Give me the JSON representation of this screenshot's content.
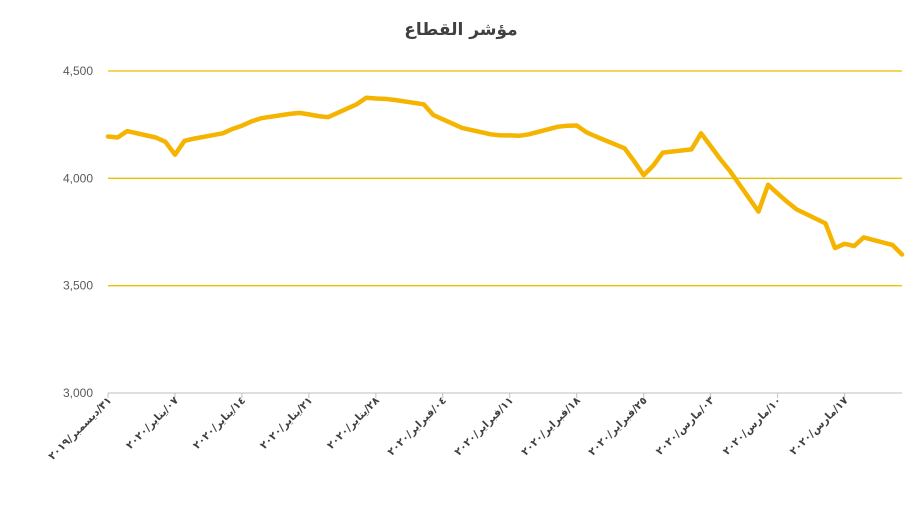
{
  "chart_data": {
    "type": "line",
    "title": "مؤشر القطاع",
    "xlabel": "",
    "ylabel": "",
    "ylim": [
      3000,
      4500
    ],
    "y_ticks": [
      3000,
      3500,
      4000,
      4500
    ],
    "y_tick_labels": [
      "3,000",
      "3,500",
      "4,000",
      "4,500"
    ],
    "x_tick_labels": [
      "٣١/ديسمبر/٢٠١٩",
      "٠٧/يناير/٢٠٢٠",
      "١٤/يناير/٢٠٢٠",
      "٢١/يناير/٢٠٢٠",
      "٢٨/يناير/٢٠٢٠",
      "٠٤/فبراير/٢٠٢٠",
      "١١/فبراير/٢٠٢٠",
      "١٨/فبراير/٢٠٢٠",
      "٢٥/فبراير/٢٠٢٠",
      "٠٣/مارس/٢٠٢٠",
      "١٠/مارس/٢٠٢٠",
      "١٧/مارس/٢٠٢٠"
    ],
    "x_tick_days": [
      0,
      7,
      14,
      21,
      28,
      35,
      42,
      49,
      56,
      63,
      70,
      77
    ],
    "x_range_days": [
      0,
      83
    ],
    "grid": "horizontal",
    "line_color": "#F5B400",
    "grid_color": "#E8C100",
    "series": [
      {
        "x": [
          0,
          1,
          2,
          5,
          6,
          7,
          8,
          9,
          12,
          13,
          14,
          15,
          16,
          19,
          20,
          21,
          22,
          23,
          26,
          27,
          28,
          29,
          30,
          33,
          34,
          35,
          36,
          37,
          40,
          41,
          42,
          43,
          44,
          47,
          48,
          49,
          50,
          51,
          54,
          55,
          56,
          57,
          58,
          61,
          62,
          63,
          64,
          65,
          68,
          69,
          70,
          71,
          72,
          75,
          76,
          77,
          78,
          79,
          82,
          83
        ],
        "y": [
          4195,
          4190,
          4220,
          4190,
          4170,
          4110,
          4175,
          4185,
          4210,
          4230,
          4245,
          4265,
          4280,
          4300,
          4305,
          4298,
          4290,
          4285,
          4345,
          4375,
          4372,
          4370,
          4365,
          4345,
          4295,
          4275,
          4255,
          4235,
          4205,
          4200,
          4200,
          4198,
          4205,
          4240,
          4245,
          4246,
          4215,
          4195,
          4140,
          4080,
          4015,
          4060,
          4120,
          4135,
          4210,
          4150,
          4090,
          4035,
          3845,
          3970,
          3930,
          3890,
          3855,
          3790,
          3675,
          3695,
          3685,
          3725,
          3690,
          3645
        ]
      }
    ]
  }
}
